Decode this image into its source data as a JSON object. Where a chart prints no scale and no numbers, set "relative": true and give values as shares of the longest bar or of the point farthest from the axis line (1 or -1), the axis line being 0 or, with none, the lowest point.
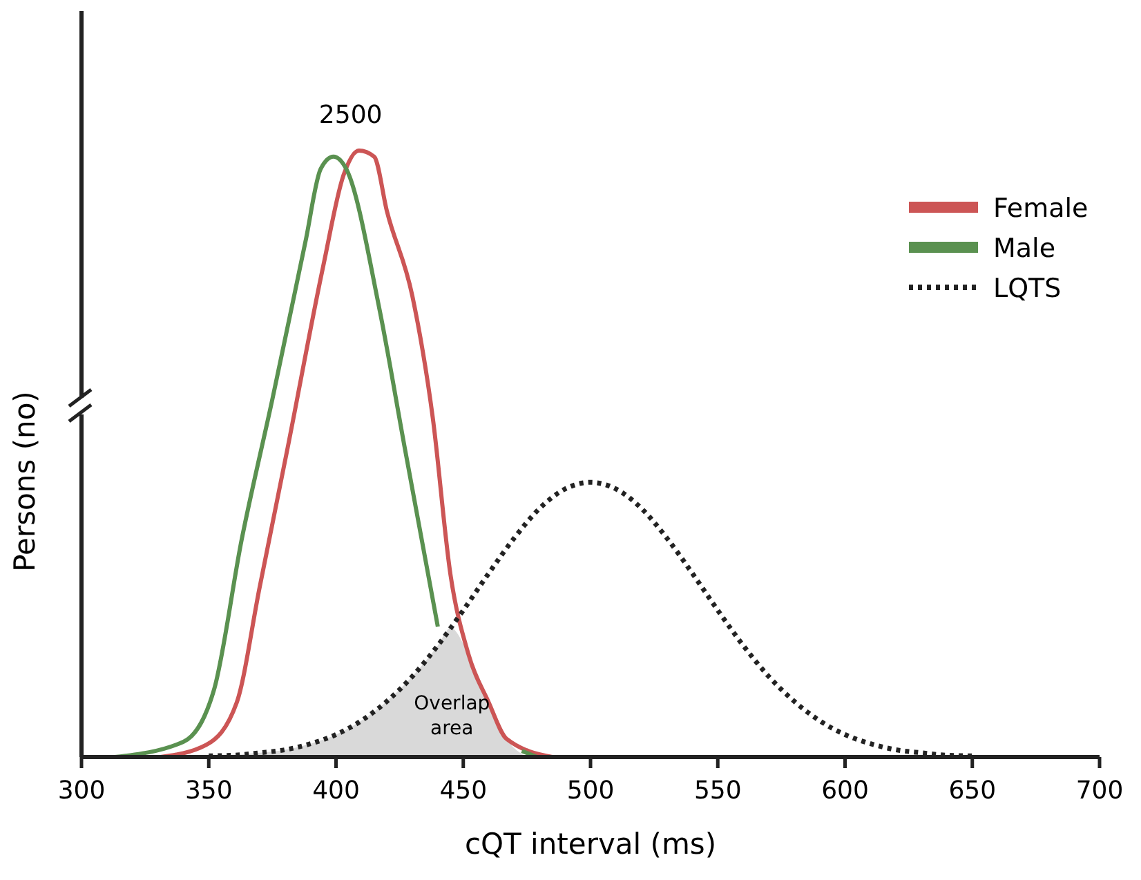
{
  "chart_data": {
    "type": "line",
    "xlabel": "cQT interval (ms)",
    "ylabel": "Persons (no)",
    "relative": true,
    "xlim": [
      300,
      700
    ],
    "xticks": [
      300,
      350,
      400,
      450,
      500,
      550,
      600,
      650,
      700
    ],
    "legend": "top right",
    "grid": false,
    "series": [
      {
        "type": "area",
        "color": "#d9d9d9",
        "x": [
          360,
          370,
          380,
          390,
          400,
          410,
          420,
          430,
          440,
          445,
          452,
          460,
          467,
          475
        ],
        "values": [
          0.003,
          0.007,
          0.012,
          0.022,
          0.037,
          0.06,
          0.092,
          0.133,
          0.184,
          0.213,
          0.17,
          0.09,
          0.03,
          0
        ]
      },
      {
        "name": "Female",
        "color": "#cc5555",
        "line_style": "solid",
        "x": [
          331,
          349,
          361,
          370,
          381,
          395,
          403,
          409,
          415,
          420,
          430,
          438,
          445,
          452,
          460,
          467,
          485
        ],
        "values": [
          0,
          0.02,
          0.09,
          0.28,
          0.51,
          0.81,
          0.96,
          1,
          0.99,
          0.9,
          0.76,
          0.56,
          0.3,
          0.17,
          0.09,
          0.03,
          0
        ]
      },
      {
        "name": "Male",
        "color": "#5a9150",
        "line_style": "solid",
        "x": [
          313,
          340,
          352,
          363,
          375,
          388,
          394,
          399,
          404,
          417,
          427,
          440,
          450,
          460,
          473,
          479
        ],
        "values": [
          0,
          0.025,
          0.11,
          0.36,
          0.59,
          0.85,
          0.97,
          0.99,
          0.97,
          0.74,
          0.51,
          0.215,
          null,
          null,
          0.01,
          0
        ]
      },
      {
        "name": "LQTS",
        "color": "#222222",
        "line_style": "dotted",
        "x": [
          350,
          360,
          370,
          380,
          390,
          400,
          410,
          420,
          430,
          440,
          450,
          460,
          470,
          480,
          490,
          500,
          510,
          520,
          530,
          540,
          550,
          560,
          570,
          580,
          590,
          600,
          610,
          620,
          630,
          640,
          650
        ],
        "values": [
          0.002,
          0.003,
          0.007,
          0.012,
          0.022,
          0.037,
          0.06,
          0.092,
          0.133,
          0.184,
          0.242,
          0.303,
          0.361,
          0.41,
          0.442,
          0.453,
          0.442,
          0.41,
          0.361,
          0.303,
          0.242,
          0.184,
          0.133,
          0.092,
          0.06,
          0.037,
          0.022,
          0.012,
          0.007,
          0.003,
          0.002
        ]
      }
    ],
    "annotations": [
      "2500",
      "Overlap area"
    ]
  }
}
